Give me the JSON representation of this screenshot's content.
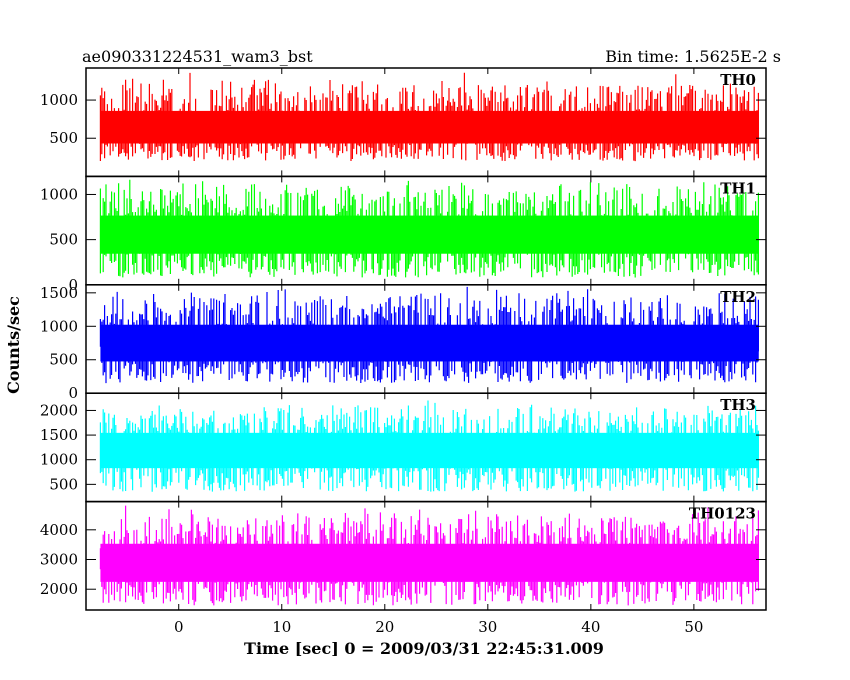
{
  "header": {
    "left_title": "ae090331224531_wam3_bst",
    "right_title": "Bin time: 1.5625E-2 s"
  },
  "chart_data": {
    "type": "line",
    "title": "ae090331224531_wam3_bst",
    "subtitle": "Bin time: 1.5625E-2 s",
    "xlabel": "Time [sec] 0 = 2009/03/31 22:45:31.009",
    "ylabel": "Counts/sec",
    "xlim": [
      -9,
      57
    ],
    "x_data_range": [
      -7.6,
      56.3
    ],
    "xticks": [
      0,
      10,
      20,
      30,
      40,
      50
    ],
    "grid": false,
    "panels": [
      {
        "name": "TH0",
        "color": "#ff0000",
        "ylim": [
          0,
          1420
        ],
        "yticks": [
          500,
          1000
        ],
        "typical_range": [
          200,
          1300
        ],
        "mean": 620
      },
      {
        "name": "TH1",
        "color": "#00ff00",
        "ylim": [
          0,
          1200
        ],
        "yticks": [
          0,
          500,
          1000
        ],
        "typical_range": [
          80,
          1150
        ],
        "mean": 560
      },
      {
        "name": "TH2",
        "color": "#0000ff",
        "ylim": [
          0,
          1620
        ],
        "yticks": [
          0,
          500,
          1000,
          1500
        ],
        "typical_range": [
          150,
          1550
        ],
        "mean": 740
      },
      {
        "name": "TH3",
        "color": "#00ffff",
        "ylim": [
          150,
          2350
        ],
        "yticks": [
          500,
          1000,
          1500,
          2000
        ],
        "typical_range": [
          350,
          2150
        ],
        "mean": 1220
      },
      {
        "name": "TH0123",
        "color": "#ff00ff",
        "ylim": [
          1300,
          4950
        ],
        "yticks": [
          2000,
          3000,
          4000
        ],
        "typical_range": [
          1450,
          4700
        ],
        "mean": 2900
      }
    ]
  }
}
